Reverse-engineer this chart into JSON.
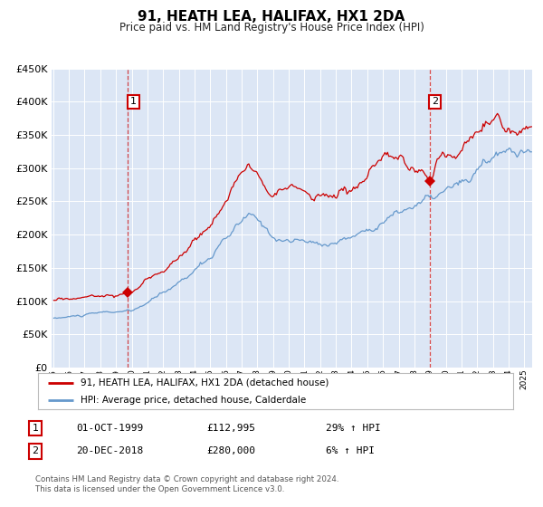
{
  "title": "91, HEATH LEA, HALIFAX, HX1 2DA",
  "subtitle": "Price paid vs. HM Land Registry's House Price Index (HPI)",
  "hpi_label": "HPI: Average price, detached house, Calderdale",
  "price_label": "91, HEATH LEA, HALIFAX, HX1 2DA (detached house)",
  "annotation1_date": "01-OCT-1999",
  "annotation1_price": 112995,
  "annotation1_hpi": "29% ↑ HPI",
  "annotation2_date": "20-DEC-2018",
  "annotation2_price": 280000,
  "annotation2_hpi": "6% ↑ HPI",
  "sale1_year": 1999.75,
  "sale2_year": 2018.96,
  "ylim_max": 450000,
  "bg_color": "#dce6f5",
  "red_color": "#cc0000",
  "blue_color": "#6699cc",
  "footer": "Contains HM Land Registry data © Crown copyright and database right 2024.\nThis data is licensed under the Open Government Licence v3.0."
}
